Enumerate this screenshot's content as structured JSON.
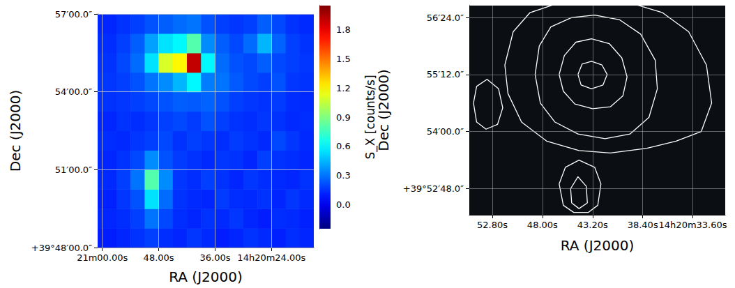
{
  "chart_data": [
    {
      "type": "heatmap",
      "x_label": "RA (J2000)",
      "y_label": "Dec (J2000)",
      "xlim": [
        61,
        15
      ],
      "ylim": [
        48,
        57
      ],
      "xticks": [
        {
          "value": 60,
          "label": "21m00.00s"
        },
        {
          "value": 48,
          "label": "48.00s"
        },
        {
          "value": 36,
          "label": "36.00s"
        },
        {
          "value": 24,
          "label": "14h20m24.00s"
        }
      ],
      "yticks": [
        {
          "value": 48,
          "label": "+39°48′00.0″"
        },
        {
          "value": 51,
          "label": "51′00.0″"
        },
        {
          "value": 54,
          "label": "54′00.0″"
        },
        {
          "value": 57,
          "label": "57′00.0″"
        }
      ],
      "grid": true,
      "x_edges": [
        61,
        57,
        54,
        51,
        48,
        45,
        42,
        39,
        36,
        33,
        30,
        27,
        24,
        21,
        18,
        15
      ],
      "y_edges": [
        48,
        48.75,
        49.5,
        50.25,
        51,
        51.75,
        52.5,
        53.25,
        54,
        54.75,
        55.5,
        56.25,
        57
      ],
      "cells": [
        [
          0.1,
          0.12,
          0.15,
          0.18,
          0.14,
          0.12,
          0.16,
          0.13,
          0.1,
          0.12,
          0.15,
          0.13,
          0.11,
          0.14,
          0.12
        ],
        [
          0.12,
          0.14,
          0.18,
          0.3,
          0.2,
          0.14,
          0.12,
          0.15,
          0.13,
          0.16,
          0.12,
          0.1,
          0.14,
          0.13,
          0.11
        ],
        [
          0.11,
          0.16,
          0.22,
          0.55,
          0.28,
          0.15,
          0.13,
          0.12,
          0.17,
          0.14,
          0.13,
          0.15,
          0.12,
          0.16,
          0.13
        ],
        [
          0.13,
          0.18,
          0.3,
          0.8,
          0.35,
          0.16,
          0.14,
          0.18,
          0.15,
          0.12,
          0.16,
          0.14,
          0.13,
          0.12,
          0.15
        ],
        [
          0.12,
          0.15,
          0.2,
          0.35,
          0.22,
          0.17,
          0.15,
          0.13,
          0.16,
          0.15,
          0.12,
          0.18,
          0.15,
          0.14,
          0.12
        ],
        [
          0.14,
          0.13,
          0.16,
          0.18,
          0.2,
          0.15,
          0.18,
          0.16,
          0.14,
          0.17,
          0.15,
          0.13,
          0.2,
          0.16,
          0.13
        ],
        [
          0.12,
          0.15,
          0.14,
          0.16,
          0.18,
          0.2,
          0.17,
          0.22,
          0.18,
          0.15,
          0.14,
          0.16,
          0.15,
          0.13,
          0.14
        ],
        [
          0.15,
          0.16,
          0.18,
          0.2,
          0.22,
          0.25,
          0.24,
          0.26,
          0.22,
          0.18,
          0.16,
          0.15,
          0.17,
          0.14,
          0.13
        ],
        [
          0.16,
          0.18,
          0.22,
          0.3,
          0.35,
          0.45,
          0.6,
          0.32,
          0.3,
          0.24,
          0.2,
          0.18,
          0.22,
          0.16,
          0.15
        ],
        [
          0.15,
          0.2,
          0.28,
          0.55,
          1.1,
          1.2,
          1.9,
          0.6,
          0.28,
          0.22,
          0.2,
          0.25,
          0.2,
          0.18,
          0.16
        ],
        [
          0.14,
          0.18,
          0.25,
          0.4,
          0.55,
          0.6,
          0.8,
          0.35,
          0.25,
          0.2,
          0.28,
          0.45,
          0.26,
          0.18,
          0.15
        ],
        [
          0.12,
          0.15,
          0.18,
          0.22,
          0.25,
          0.28,
          0.3,
          0.22,
          0.18,
          0.16,
          0.18,
          0.25,
          0.2,
          0.15,
          0.13
        ]
      ],
      "colorbar": {
        "label": "S_X [counts/s]",
        "lim": [
          -0.25,
          2.05
        ],
        "ticks": [
          {
            "value": 0,
            "label": "0.0"
          },
          0.3,
          0.6,
          0.9,
          1.2,
          1.5,
          1.8
        ]
      }
    },
    {
      "type": "contour",
      "x_label": "RA (J2000)",
      "y_label": "Dec (J2000)",
      "xlim": [
        55,
        30.5
      ],
      "ylim": [
        52.25,
        56.65
      ],
      "xticks": [
        {
          "value": 52.8,
          "label": "52.80s"
        },
        {
          "value": 48,
          "label": "48.00s"
        },
        {
          "value": 43.2,
          "label": "43.20s"
        },
        {
          "value": 38.4,
          "label": "38.40s"
        },
        {
          "value": 33.6,
          "label": "14h20m33.60s"
        }
      ],
      "yticks": [
        {
          "value": 52.8,
          "label": "+39°52′48.0″"
        },
        {
          "value": 54,
          "label": "54′00.0″"
        },
        {
          "value": 55.2,
          "label": "55′12.0″"
        },
        {
          "value": 56.4,
          "label": "56′24.0″"
        }
      ],
      "grid": true,
      "color": "#ffffff",
      "contours": [
        [
          [
            44.6,
            55.2
          ],
          [
            44.2,
            55.42
          ],
          [
            43.3,
            55.48
          ],
          [
            42.3,
            55.4
          ],
          [
            41.8,
            55.2
          ],
          [
            42.2,
            54.98
          ],
          [
            43.3,
            54.9
          ],
          [
            44.3,
            54.98
          ],
          [
            44.6,
            55.2
          ]
        ],
        [
          [
            46.4,
            55.2
          ],
          [
            45.9,
            55.6
          ],
          [
            44.8,
            55.88
          ],
          [
            43.3,
            55.95
          ],
          [
            41.6,
            55.85
          ],
          [
            40.4,
            55.55
          ],
          [
            39.9,
            55.15
          ],
          [
            40.3,
            54.75
          ],
          [
            41.5,
            54.52
          ],
          [
            43.2,
            54.48
          ],
          [
            44.9,
            54.58
          ],
          [
            46.0,
            54.85
          ],
          [
            46.4,
            55.2
          ]
        ],
        [
          [
            48.7,
            55.2
          ],
          [
            48.3,
            55.8
          ],
          [
            47.2,
            56.2
          ],
          [
            45.2,
            56.4
          ],
          [
            43.0,
            56.45
          ],
          [
            40.6,
            56.35
          ],
          [
            38.6,
            56.05
          ],
          [
            37.2,
            55.5
          ],
          [
            37.0,
            54.9
          ],
          [
            37.8,
            54.3
          ],
          [
            39.6,
            53.95
          ],
          [
            42.0,
            53.85
          ],
          [
            44.6,
            53.95
          ],
          [
            46.8,
            54.2
          ],
          [
            48.2,
            54.6
          ],
          [
            48.7,
            55.2
          ]
        ],
        [
          [
            51.6,
            55.4
          ],
          [
            50.8,
            56.1
          ],
          [
            49.2,
            56.5
          ],
          [
            46.5,
            56.7
          ],
          [
            43.0,
            56.75
          ],
          [
            39.5,
            56.7
          ],
          [
            36.5,
            56.5
          ],
          [
            34.0,
            56.1
          ],
          [
            32.3,
            55.4
          ],
          [
            31.8,
            54.6
          ],
          [
            32.8,
            54.0
          ],
          [
            35.2,
            53.8
          ],
          [
            38.0,
            53.65
          ],
          [
            41.5,
            53.55
          ],
          [
            44.5,
            53.6
          ],
          [
            47.6,
            53.8
          ],
          [
            50.0,
            54.2
          ],
          [
            51.3,
            54.8
          ],
          [
            51.6,
            55.4
          ]
        ],
        [
          [
            54.6,
            54.6
          ],
          [
            54.3,
            54.95
          ],
          [
            53.3,
            55.1
          ],
          [
            52.2,
            54.9
          ],
          [
            51.8,
            54.5
          ],
          [
            52.3,
            54.15
          ],
          [
            53.4,
            54.05
          ],
          [
            54.3,
            54.2
          ],
          [
            54.6,
            54.6
          ]
        ],
        [
          [
            46.4,
            52.9
          ],
          [
            45.8,
            53.25
          ],
          [
            44.5,
            53.4
          ],
          [
            43.0,
            53.25
          ],
          [
            42.4,
            52.9
          ],
          [
            42.7,
            52.45
          ],
          [
            43.6,
            52.3
          ],
          [
            45.0,
            52.3
          ],
          [
            46.0,
            52.45
          ],
          [
            46.4,
            52.9
          ]
        ],
        [
          [
            45.3,
            52.8
          ],
          [
            44.6,
            53.05
          ],
          [
            43.8,
            52.85
          ],
          [
            43.7,
            52.5
          ],
          [
            44.5,
            52.38
          ],
          [
            45.2,
            52.5
          ],
          [
            45.3,
            52.8
          ]
        ]
      ]
    }
  ]
}
